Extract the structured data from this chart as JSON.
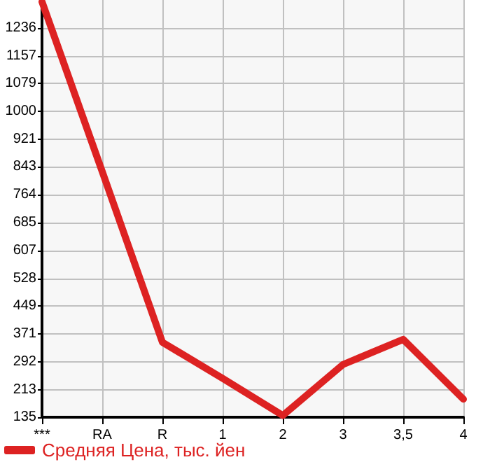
{
  "chart_data": {
    "type": "line",
    "categories": [
      "***",
      "RA",
      "R",
      "1",
      "2",
      "3",
      "3,5",
      "4"
    ],
    "series": [
      {
        "name": "Средняя Цена, тыс. йен",
        "color": "#dd2222",
        "values": [
          1310,
          830,
          347,
          245,
          140,
          284,
          355,
          186
        ]
      }
    ],
    "ylim": [
      135,
      1315
    ],
    "yticks": [
      135,
      213,
      292,
      371,
      449,
      528,
      607,
      685,
      764,
      843,
      921,
      1000,
      1079,
      1157,
      1236
    ],
    "grid": true,
    "legend": "bottom left",
    "marker": "none",
    "line_style": "solid"
  }
}
